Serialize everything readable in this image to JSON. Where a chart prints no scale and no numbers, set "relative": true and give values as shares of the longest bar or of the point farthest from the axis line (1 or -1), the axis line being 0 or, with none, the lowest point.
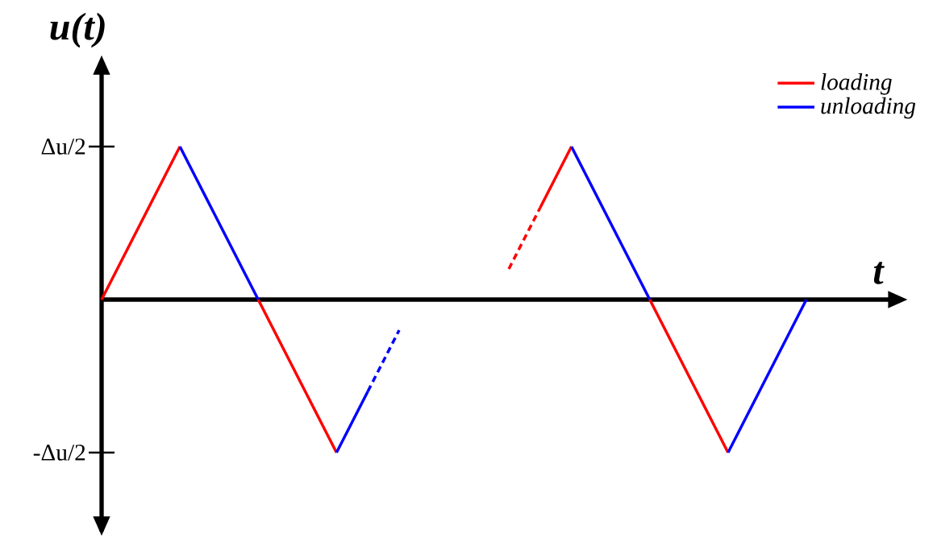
{
  "chart_data": {
    "type": "line",
    "relative": true,
    "ylabel": "u(t)",
    "xlabel": "t",
    "categories": [
      null,
      null,
      null,
      null,
      null,
      null,
      null,
      null,
      null,
      null,
      null,
      null,
      null,
      null,
      null,
      null,
      null,
      null,
      null,
      null,
      null,
      null,
      null,
      null,
      null,
      null,
      null,
      null,
      null,
      null,
      null,
      null,
      null,
      null,
      null,
      null,
      null,
      null,
      null,
      null,
      null,
      null,
      null,
      null,
      null,
      null
    ],
    "annotations": [
      "Δu/2",
      "-Δu/2"
    ],
    "legend": "top right",
    "marker": "none",
    "series": [
      {
        "name": "loading",
        "color": "#ff0000",
        "line_style": "solid",
        "values": [
          0,
          0.2,
          0.4,
          0.6,
          0.8,
          1,
          null,
          null,
          null,
          null,
          null,
          null,
          null,
          null,
          null,
          null,
          null,
          null,
          null,
          null,
          null,
          null,
          null,
          null,
          null,
          null,
          null,
          null,
          null,
          null,
          null,
          null,
          null,
          null,
          null,
          null,
          null,
          null,
          null,
          null,
          null,
          null,
          null,
          null,
          null,
          null
        ]
      },
      {
        "name": "unloading",
        "color": "#0000ff",
        "line_style": "solid",
        "values": [
          null,
          null,
          null,
          null,
          null,
          1,
          0.8,
          0.6,
          0.4,
          0.2,
          0,
          null,
          null,
          null,
          null,
          null,
          null,
          null,
          null,
          null,
          null,
          null,
          null,
          null,
          null,
          null,
          null,
          null,
          null,
          null,
          null,
          null,
          null,
          null,
          null,
          null,
          null,
          null,
          null,
          null,
          null,
          null,
          null,
          null,
          null,
          null
        ]
      },
      {
        "color": "#ff0000",
        "line_style": "solid",
        "values": [
          null,
          null,
          null,
          null,
          null,
          null,
          null,
          null,
          null,
          null,
          0,
          -0.2,
          -0.4,
          -0.6,
          -0.8,
          -1,
          null,
          null,
          null,
          null,
          null,
          null,
          null,
          null,
          null,
          null,
          null,
          null,
          null,
          null,
          null,
          null,
          null,
          null,
          null,
          null,
          null,
          null,
          null,
          null,
          null,
          null,
          null,
          null,
          null,
          null
        ]
      },
      {
        "color": "#0000ff",
        "line_style": "solid",
        "values": [
          null,
          null,
          null,
          null,
          null,
          null,
          null,
          null,
          null,
          null,
          null,
          null,
          null,
          null,
          null,
          -1,
          -0.8,
          -0.6,
          null,
          null,
          null,
          null,
          null,
          null,
          null,
          null,
          null,
          null,
          null,
          null,
          null,
          null,
          null,
          null,
          null,
          null,
          null,
          null,
          null,
          null,
          null,
          null,
          null,
          null,
          null,
          null
        ]
      },
      {
        "color": "#0000ff",
        "line_style": "dashed",
        "values": [
          null,
          null,
          null,
          null,
          null,
          null,
          null,
          null,
          null,
          null,
          null,
          null,
          null,
          null,
          null,
          null,
          null,
          -0.6,
          -0.4,
          -0.2,
          null,
          null,
          null,
          null,
          null,
          null,
          null,
          null,
          null,
          null,
          null,
          null,
          null,
          null,
          null,
          null,
          null,
          null,
          null,
          null,
          null,
          null,
          null,
          null,
          null,
          null
        ]
      },
      {
        "color": "#ff0000",
        "line_style": "dashed",
        "values": [
          null,
          null,
          null,
          null,
          null,
          null,
          null,
          null,
          null,
          null,
          null,
          null,
          null,
          null,
          null,
          null,
          null,
          null,
          null,
          null,
          null,
          null,
          null,
          null,
          null,
          null,
          0.2,
          0.4,
          0.6,
          null,
          null,
          null,
          null,
          null,
          null,
          null,
          null,
          null,
          null,
          null,
          null,
          null,
          null,
          null,
          null,
          null
        ]
      },
      {
        "color": "#ff0000",
        "line_style": "solid",
        "values": [
          null,
          null,
          null,
          null,
          null,
          null,
          null,
          null,
          null,
          null,
          null,
          null,
          null,
          null,
          null,
          null,
          null,
          null,
          null,
          null,
          null,
          null,
          null,
          null,
          null,
          null,
          null,
          null,
          0.6,
          0.8,
          1,
          null,
          null,
          null,
          null,
          null,
          null,
          null,
          null,
          null,
          null,
          null,
          null,
          null,
          null,
          null
        ]
      },
      {
        "color": "#0000ff",
        "line_style": "solid",
        "values": [
          null,
          null,
          null,
          null,
          null,
          null,
          null,
          null,
          null,
          null,
          null,
          null,
          null,
          null,
          null,
          null,
          null,
          null,
          null,
          null,
          null,
          null,
          null,
          null,
          null,
          null,
          null,
          null,
          null,
          null,
          1,
          0.8,
          0.6,
          0.4,
          0.2,
          0,
          null,
          null,
          null,
          null,
          null,
          null,
          null,
          null,
          null,
          null
        ]
      },
      {
        "color": "#ff0000",
        "line_style": "solid",
        "values": [
          null,
          null,
          null,
          null,
          null,
          null,
          null,
          null,
          null,
          null,
          null,
          null,
          null,
          null,
          null,
          null,
          null,
          null,
          null,
          null,
          null,
          null,
          null,
          null,
          null,
          null,
          null,
          null,
          null,
          null,
          null,
          null,
          null,
          null,
          null,
          0,
          -0.2,
          -0.4,
          -0.6,
          -0.8,
          -1,
          null,
          null,
          null,
          null,
          null
        ]
      },
      {
        "color": "#0000ff",
        "line_style": "solid",
        "values": [
          null,
          null,
          null,
          null,
          null,
          null,
          null,
          null,
          null,
          null,
          null,
          null,
          null,
          null,
          null,
          null,
          null,
          null,
          null,
          null,
          null,
          null,
          null,
          null,
          null,
          null,
          null,
          null,
          null,
          null,
          null,
          null,
          null,
          null,
          null,
          null,
          null,
          null,
          null,
          null,
          -1,
          -0.8,
          -0.6,
          -0.4,
          -0.2,
          0
        ]
      }
    ]
  }
}
